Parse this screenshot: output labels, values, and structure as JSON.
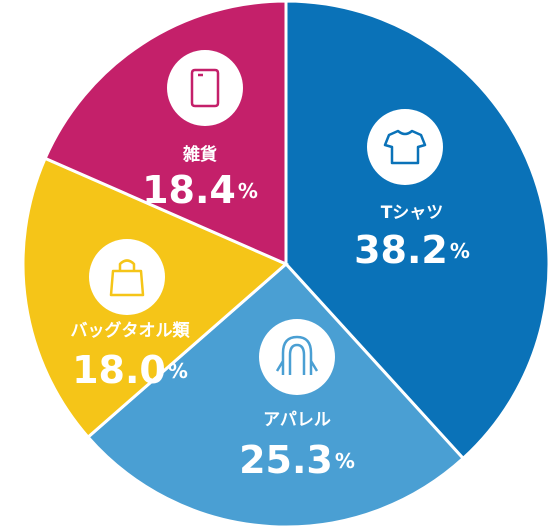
{
  "chart_data": {
    "type": "pie",
    "categories": [
      "Tシャツ",
      "アパレル",
      "バッグタオル類",
      "雑貨"
    ],
    "values": [
      38.2,
      25.3,
      18.0,
      18.4
    ],
    "value_labels": [
      "38.2%",
      "25.3%",
      "18.0%",
      "18.4%"
    ],
    "colors": [
      "#0a72b8",
      "#4a9fd3",
      "#f5c518",
      "#c4206a"
    ]
  }
}
